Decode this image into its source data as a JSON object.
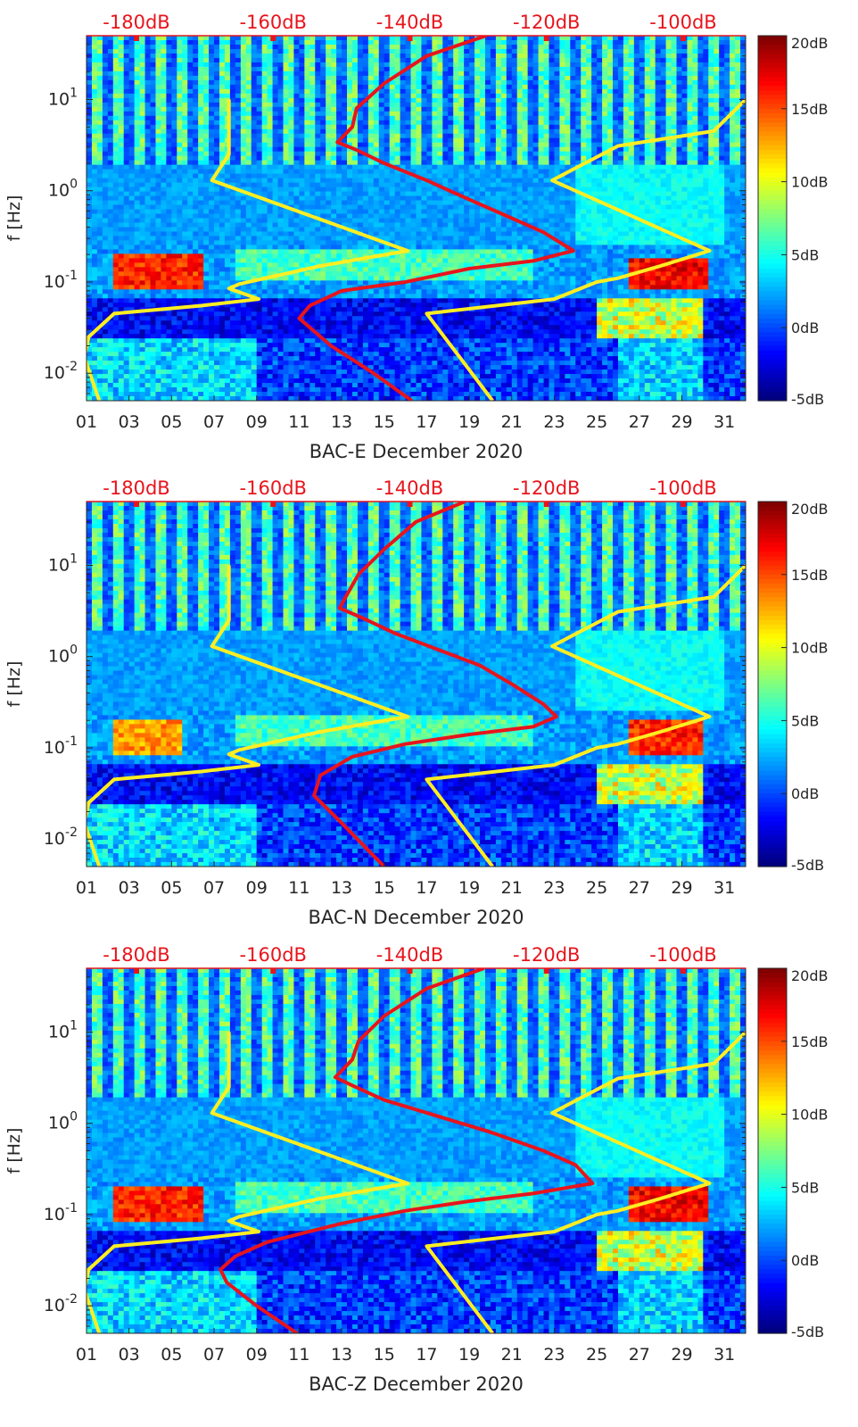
{
  "chart_data": [
    {
      "type": "heatmap",
      "title": "",
      "xlabel": "BAC-E December 2020",
      "ylabel": "f [Hz]",
      "x_ticks": [
        "01",
        "03",
        "05",
        "07",
        "09",
        "11",
        "13",
        "15",
        "17",
        "19",
        "21",
        "23",
        "25",
        "27",
        "29",
        "31"
      ],
      "y_ticks": [
        "10-2",
        "10-1",
        "100",
        "101"
      ],
      "y_scale": "log",
      "x_range_days": [
        1,
        32
      ],
      "y_range_hz": [
        0.005,
        50
      ],
      "colorbar": {
        "ticks": [
          "20dB",
          "15dB",
          "10dB",
          "5dB",
          "0dB",
          "-5dB"
        ],
        "range_db": [
          -5,
          20
        ],
        "colormap": "jet"
      },
      "top_axis_ticks": [
        "-180dB",
        "-160dB",
        "-140dB",
        "-120dB",
        "-100dB"
      ],
      "hot_bands": [
        {
          "f": 0.13,
          "days": [
            2.2,
            6.5
          ],
          "level": 18
        },
        {
          "f": 0.12,
          "days": [
            26.5,
            30.2
          ],
          "level": 19
        },
        {
          "f": 0.15,
          "days": [
            8.0,
            22.0
          ],
          "level": 8
        }
      ],
      "series": [
        {
          "color": "#ffee22",
          "points": [
            [
              7.7,
              10
            ],
            [
              7.7,
              2.5
            ],
            [
              6.9,
              1.3
            ],
            [
              16.1,
              0.22
            ],
            [
              12.0,
              0.15
            ],
            [
              8.2,
              0.095
            ],
            [
              7.7,
              0.085
            ],
            [
              9.1,
              0.065
            ],
            [
              6.4,
              0.055
            ],
            [
              2.3,
              0.045
            ],
            [
              1.1,
              0.025
            ],
            [
              0.9,
              0.015
            ],
            [
              1.6,
              0.005
            ]
          ]
        },
        {
          "color": "#ffee22",
          "points": [
            [
              32,
              10
            ],
            [
              30.5,
              4.5
            ],
            [
              26,
              3.1
            ],
            [
              22.9,
              1.3
            ],
            [
              30.3,
              0.22
            ],
            [
              28.0,
              0.15
            ],
            [
              26.0,
              0.11
            ],
            [
              25.0,
              0.1
            ],
            [
              23.0,
              0.065
            ],
            [
              17.0,
              0.045
            ],
            [
              20.1,
              0.005
            ]
          ]
        },
        {
          "color": "#e8141c",
          "points": [
            [
              19.8,
              50
            ],
            [
              17.0,
              30
            ],
            [
              15.0,
              15
            ],
            [
              13.7,
              8
            ],
            [
              13.5,
              5
            ],
            [
              12.8,
              3.4
            ],
            [
              13.7,
              2.8
            ],
            [
              15.0,
              2.0
            ],
            [
              17.0,
              1.3
            ],
            [
              19.0,
              0.8
            ],
            [
              21.0,
              0.5
            ],
            [
              22.5,
              0.35
            ],
            [
              23.9,
              0.22
            ],
            [
              22.0,
              0.17
            ],
            [
              19.0,
              0.14
            ],
            [
              16.0,
              0.1
            ],
            [
              13.0,
              0.08
            ],
            [
              11.5,
              0.055
            ],
            [
              11.0,
              0.04
            ],
            [
              12.5,
              0.02
            ],
            [
              14.5,
              0.01
            ],
            [
              16.3,
              0.005
            ]
          ]
        }
      ]
    },
    {
      "type": "heatmap",
      "title": "",
      "xlabel": "BAC-N December 2020",
      "ylabel": "f [Hz]",
      "x_ticks": [
        "01",
        "03",
        "05",
        "07",
        "09",
        "11",
        "13",
        "15",
        "17",
        "19",
        "21",
        "23",
        "25",
        "27",
        "29",
        "31"
      ],
      "y_ticks": [
        "10-2",
        "10-1",
        "100",
        "101"
      ],
      "y_scale": "log",
      "x_range_days": [
        1,
        32
      ],
      "y_range_hz": [
        0.005,
        50
      ],
      "colorbar": {
        "ticks": [
          "20dB",
          "15dB",
          "10dB",
          "5dB",
          "0dB",
          "-5dB"
        ],
        "range_db": [
          -5,
          20
        ],
        "colormap": "jet"
      },
      "top_axis_ticks": [
        "-180dB",
        "-160dB",
        "-140dB",
        "-120dB",
        "-100dB"
      ],
      "hot_bands": [
        {
          "f": 0.13,
          "days": [
            2.2,
            5.5
          ],
          "level": 15
        },
        {
          "f": 0.13,
          "days": [
            26.5,
            30.0
          ],
          "level": 18
        },
        {
          "f": 0.15,
          "days": [
            8.0,
            22.0
          ],
          "level": 8
        }
      ],
      "series": [
        {
          "color": "#ffee22",
          "points": [
            [
              7.7,
              10
            ],
            [
              7.7,
              2.5
            ],
            [
              6.9,
              1.3
            ],
            [
              16.1,
              0.22
            ],
            [
              12.0,
              0.15
            ],
            [
              8.2,
              0.095
            ],
            [
              7.7,
              0.085
            ],
            [
              9.1,
              0.065
            ],
            [
              6.4,
              0.055
            ],
            [
              2.3,
              0.045
            ],
            [
              1.1,
              0.025
            ],
            [
              0.9,
              0.015
            ],
            [
              1.6,
              0.005
            ]
          ]
        },
        {
          "color": "#ffee22",
          "points": [
            [
              32,
              10
            ],
            [
              30.5,
              4.5
            ],
            [
              26,
              3.1
            ],
            [
              22.9,
              1.3
            ],
            [
              30.3,
              0.22
            ],
            [
              28.0,
              0.15
            ],
            [
              26.0,
              0.11
            ],
            [
              25.0,
              0.1
            ],
            [
              23.0,
              0.065
            ],
            [
              17.0,
              0.045
            ],
            [
              20.1,
              0.005
            ]
          ]
        },
        {
          "color": "#e8141c",
          "points": [
            [
              18.8,
              50
            ],
            [
              16.5,
              30
            ],
            [
              15.0,
              15
            ],
            [
              13.8,
              8
            ],
            [
              13.3,
              5
            ],
            [
              12.9,
              3.4
            ],
            [
              13.9,
              2.7
            ],
            [
              15.5,
              1.8
            ],
            [
              17.5,
              1.2
            ],
            [
              19.5,
              0.8
            ],
            [
              21.0,
              0.5
            ],
            [
              22.5,
              0.3
            ],
            [
              23.1,
              0.22
            ],
            [
              22.0,
              0.17
            ],
            [
              19.0,
              0.14
            ],
            [
              16.0,
              0.11
            ],
            [
              13.5,
              0.08
            ],
            [
              12.0,
              0.05
            ],
            [
              11.7,
              0.03
            ],
            [
              13.0,
              0.015
            ],
            [
              15.0,
              0.005
            ]
          ]
        }
      ]
    },
    {
      "type": "heatmap",
      "title": "",
      "xlabel": "BAC-Z December 2020",
      "ylabel": "f [Hz]",
      "x_ticks": [
        "01",
        "03",
        "05",
        "07",
        "09",
        "11",
        "13",
        "15",
        "17",
        "19",
        "21",
        "23",
        "25",
        "27",
        "29",
        "31"
      ],
      "y_ticks": [
        "10-2",
        "10-1",
        "100",
        "101"
      ],
      "y_scale": "log",
      "x_range_days": [
        1,
        32
      ],
      "y_range_hz": [
        0.005,
        50
      ],
      "colorbar": {
        "ticks": [
          "20dB",
          "15dB",
          "10dB",
          "5dB",
          "0dB",
          "-5dB"
        ],
        "range_db": [
          -5,
          20
        ],
        "colormap": "jet"
      },
      "top_axis_ticks": [
        "-180dB",
        "-160dB",
        "-140dB",
        "-120dB",
        "-100dB"
      ],
      "hot_bands": [
        {
          "f": 0.13,
          "days": [
            2.2,
            6.5
          ],
          "level": 18
        },
        {
          "f": 0.13,
          "days": [
            26.5,
            30.2
          ],
          "level": 19
        },
        {
          "f": 0.15,
          "days": [
            8.0,
            22.0
          ],
          "level": 8
        }
      ],
      "series": [
        {
          "color": "#ffee22",
          "points": [
            [
              7.7,
              10
            ],
            [
              7.7,
              2.5
            ],
            [
              6.9,
              1.3
            ],
            [
              16.1,
              0.22
            ],
            [
              12.0,
              0.15
            ],
            [
              8.2,
              0.095
            ],
            [
              7.7,
              0.085
            ],
            [
              9.1,
              0.065
            ],
            [
              6.4,
              0.055
            ],
            [
              2.3,
              0.045
            ],
            [
              1.1,
              0.025
            ],
            [
              0.9,
              0.015
            ],
            [
              1.6,
              0.005
            ]
          ]
        },
        {
          "color": "#ffee22",
          "points": [
            [
              32,
              10
            ],
            [
              30.5,
              4.5
            ],
            [
              26,
              3.1
            ],
            [
              22.9,
              1.3
            ],
            [
              30.3,
              0.22
            ],
            [
              28.0,
              0.15
            ],
            [
              26.0,
              0.11
            ],
            [
              25.0,
              0.1
            ],
            [
              23.0,
              0.065
            ],
            [
              17.0,
              0.045
            ],
            [
              20.1,
              0.005
            ]
          ]
        },
        {
          "color": "#e8141c",
          "points": [
            [
              19.7,
              50
            ],
            [
              17.0,
              30
            ],
            [
              15.0,
              15
            ],
            [
              13.8,
              8
            ],
            [
              13.5,
              5
            ],
            [
              12.7,
              3.2
            ],
            [
              13.5,
              2.6
            ],
            [
              15.0,
              1.8
            ],
            [
              17.5,
              1.2
            ],
            [
              20.0,
              0.8
            ],
            [
              22.5,
              0.5
            ],
            [
              24.0,
              0.35
            ],
            [
              24.8,
              0.22
            ],
            [
              22.0,
              0.17
            ],
            [
              19.0,
              0.14
            ],
            [
              16.0,
              0.11
            ],
            [
              13.0,
              0.08
            ],
            [
              9.5,
              0.05
            ],
            [
              8.0,
              0.035
            ],
            [
              7.3,
              0.025
            ],
            [
              7.6,
              0.018
            ],
            [
              9.0,
              0.01
            ],
            [
              10.9,
              0.005
            ]
          ]
        }
      ]
    }
  ]
}
